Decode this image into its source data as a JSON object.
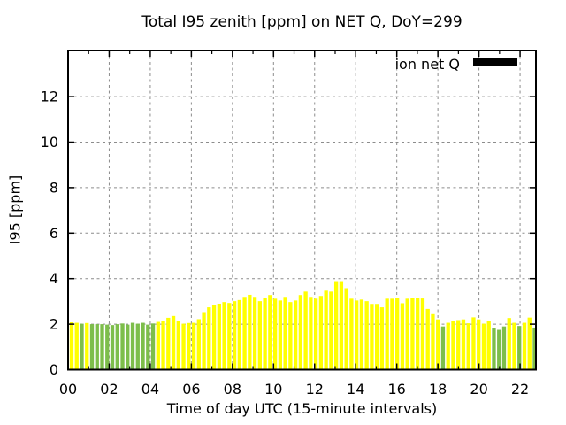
{
  "title": "Total I95 zenith [ppm] on NET Q, DoY=299",
  "legend": {
    "label": "ion net Q",
    "swatch_color": "#000000"
  },
  "axes": {
    "xlabel": "Time of day UTC (15-minute intervals)",
    "ylabel": "I95 [ppm]",
    "x_tick_labels": [
      "00",
      "02",
      "04",
      "06",
      "08",
      "10",
      "12",
      "14",
      "16",
      "18",
      "20",
      "22"
    ],
    "x_tick_hours": [
      0,
      2,
      4,
      6,
      8,
      10,
      12,
      14,
      16,
      18,
      20,
      22
    ],
    "x_minor_tick_hours": [
      1,
      3,
      5,
      7,
      9,
      11,
      13,
      15,
      17,
      19,
      21
    ],
    "y_tick_labels": [
      "0",
      "2",
      "4",
      "6",
      "8",
      "10",
      "12"
    ],
    "y_tick_values": [
      0,
      2,
      4,
      6,
      8,
      10,
      12
    ],
    "xlim_hours": [
      0,
      22.77
    ],
    "ylim": [
      0,
      14.0
    ],
    "grid": true,
    "grid_color": "#8c8c8c",
    "border_color": "#000000"
  },
  "chart_data": {
    "type": "bar",
    "title": "Total I95 zenith [ppm] on NET Q, DoY=299",
    "xlabel": "Time of day UTC (15-minute intervals)",
    "ylabel": "I95 [ppm]",
    "series_name": "ion net Q",
    "bar_interval_minutes": 15,
    "colors": {
      "Y": "#ffff00",
      "G": "#7dbe4b"
    },
    "times": [
      "00:00",
      "00:15",
      "00:30",
      "00:45",
      "01:00",
      "01:15",
      "01:30",
      "01:45",
      "02:00",
      "02:15",
      "02:30",
      "02:45",
      "03:00",
      "03:15",
      "03:30",
      "03:45",
      "04:00",
      "04:15",
      "04:30",
      "04:45",
      "05:00",
      "05:15",
      "05:30",
      "05:45",
      "06:00",
      "06:15",
      "06:30",
      "06:45",
      "07:00",
      "07:15",
      "07:30",
      "07:45",
      "08:00",
      "08:15",
      "08:30",
      "08:45",
      "09:00",
      "09:15",
      "09:30",
      "09:45",
      "10:00",
      "10:15",
      "10:30",
      "10:45",
      "11:00",
      "11:15",
      "11:30",
      "11:45",
      "12:00",
      "12:15",
      "12:30",
      "12:45",
      "13:00",
      "13:15",
      "13:30",
      "13:45",
      "14:00",
      "14:15",
      "14:30",
      "14:45",
      "15:00",
      "15:15",
      "15:30",
      "15:45",
      "16:00",
      "16:15",
      "16:30",
      "16:45",
      "17:00",
      "17:15",
      "17:30",
      "17:45",
      "18:00",
      "18:15",
      "18:30",
      "18:45",
      "19:00",
      "19:15",
      "19:30",
      "19:45",
      "20:00",
      "20:15",
      "20:30",
      "20:45",
      "21:00",
      "21:15",
      "21:30",
      "21:45",
      "22:00",
      "22:15",
      "22:30",
      "22:45"
    ],
    "values": [
      2.08,
      2.06,
      2.02,
      2.05,
      2.0,
      2.0,
      2.0,
      1.98,
      1.96,
      2.0,
      2.03,
      1.98,
      2.06,
      2.02,
      2.06,
      1.98,
      2.03,
      2.1,
      2.16,
      2.28,
      2.36,
      2.13,
      2.02,
      2.05,
      2.06,
      2.22,
      2.53,
      2.74,
      2.84,
      2.9,
      2.97,
      2.93,
      3.01,
      3.06,
      3.2,
      3.29,
      3.2,
      3.01,
      3.14,
      3.28,
      3.12,
      3.04,
      3.2,
      2.97,
      3.04,
      3.28,
      3.43,
      3.2,
      3.12,
      3.24,
      3.47,
      3.43,
      3.89,
      3.89,
      3.58,
      3.12,
      3.04,
      3.08,
      3.01,
      2.89,
      2.89,
      2.74,
      3.12,
      3.12,
      3.15,
      2.92,
      3.12,
      3.17,
      3.17,
      3.13,
      2.67,
      2.44,
      2.21,
      1.9,
      2.06,
      2.13,
      2.18,
      2.21,
      2.04,
      2.3,
      2.21,
      2.02,
      2.13,
      1.83,
      1.75,
      1.9,
      2.27,
      2.06,
      1.92,
      2.06,
      2.29,
      1.85
    ],
    "flags": [
      "Y",
      "Y",
      "G",
      "Y",
      "G",
      "G",
      "G",
      "G",
      "G",
      "G",
      "G",
      "G",
      "G",
      "G",
      "G",
      "G",
      "G",
      "Y",
      "Y",
      "Y",
      "Y",
      "Y",
      "Y",
      "Y",
      "Y",
      "Y",
      "Y",
      "Y",
      "Y",
      "Y",
      "Y",
      "Y",
      "Y",
      "Y",
      "Y",
      "Y",
      "Y",
      "Y",
      "Y",
      "Y",
      "Y",
      "Y",
      "Y",
      "Y",
      "Y",
      "Y",
      "Y",
      "Y",
      "Y",
      "Y",
      "Y",
      "Y",
      "Y",
      "Y",
      "Y",
      "Y",
      "Y",
      "Y",
      "Y",
      "Y",
      "Y",
      "Y",
      "Y",
      "Y",
      "Y",
      "Y",
      "Y",
      "Y",
      "Y",
      "Y",
      "Y",
      "Y",
      "Y",
      "G",
      "Y",
      "Y",
      "Y",
      "Y",
      "Y",
      "Y",
      "Y",
      "Y",
      "Y",
      "G",
      "G",
      "G",
      "Y",
      "Y",
      "G",
      "Y",
      "Y",
      "G"
    ],
    "legend_position": "top-right inside plot"
  }
}
